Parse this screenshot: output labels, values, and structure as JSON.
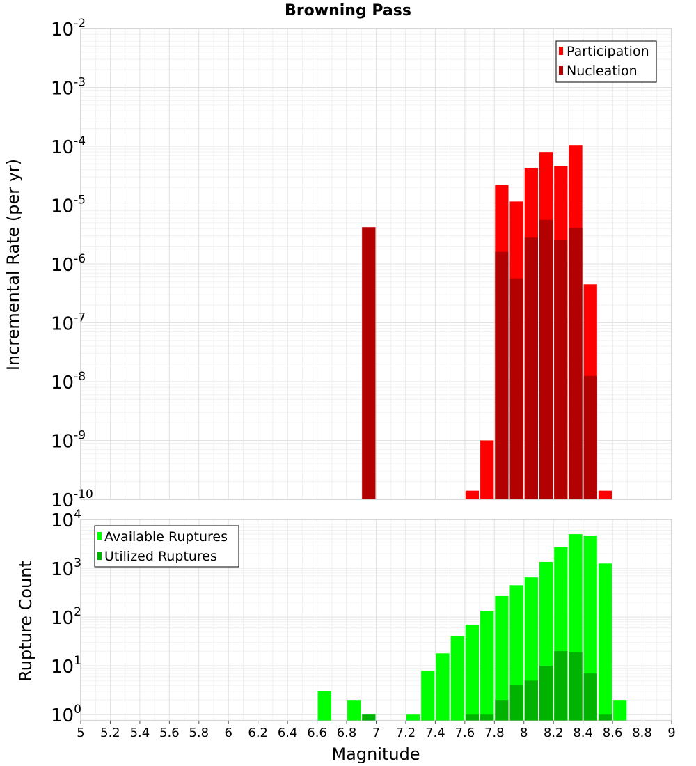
{
  "chart_data": [
    {
      "type": "bar",
      "title": "Browning Pass",
      "ylabel": "Incremental Rate (per yr)",
      "yscale": "log",
      "ylim": [
        1e-10,
        0.01
      ],
      "xlim": [
        5,
        9
      ],
      "bin_width": 0.1,
      "grid": true,
      "legend_position": "top-right",
      "legend": [
        "Participation",
        "Nucleation"
      ],
      "y_ticks": [
        {
          "base": "10",
          "exp": "-2",
          "value": 0.01
        },
        {
          "base": "10",
          "exp": "-3",
          "value": 0.001
        },
        {
          "base": "10",
          "exp": "-4",
          "value": 0.0001
        },
        {
          "base": "10",
          "exp": "-5",
          "value": 1e-05
        },
        {
          "base": "10",
          "exp": "-6",
          "value": 1e-06
        },
        {
          "base": "10",
          "exp": "-7",
          "value": 1e-07
        },
        {
          "base": "10",
          "exp": "-8",
          "value": 1e-08
        },
        {
          "base": "10",
          "exp": "-9",
          "value": 1e-09
        },
        {
          "base": "10",
          "exp": "-10",
          "value": 1e-10
        }
      ],
      "series": [
        {
          "name": "Participation",
          "color": "#ff0000",
          "x": [
            6.95,
            7.65,
            7.75,
            7.85,
            7.95,
            8.05,
            8.15,
            8.25,
            8.35,
            8.45,
            8.55
          ],
          "values": [
            4.2e-06,
            1.4e-10,
            1e-09,
            2.2e-05,
            1.15e-05,
            4.3e-05,
            8e-05,
            4.6e-05,
            0.000105,
            4.5e-07,
            1.4e-10
          ]
        },
        {
          "name": "Nucleation",
          "color": "#b30000",
          "x": [
            6.95,
            7.85,
            7.95,
            8.05,
            8.15,
            8.25,
            8.35,
            8.45
          ],
          "values": [
            4.2e-06,
            1.6e-06,
            5.7e-07,
            2.8e-06,
            5.6e-06,
            2.6e-06,
            4.1e-06,
            1.25e-08
          ]
        }
      ]
    },
    {
      "type": "bar",
      "xlabel": "Magnitude",
      "ylabel": "Rupture Count",
      "yscale": "log",
      "ylim": [
        0.75,
        10000
      ],
      "xlim": [
        5,
        9
      ],
      "bin_width": 0.1,
      "grid": true,
      "legend_position": "top-left",
      "legend": [
        "Available Ruptures",
        "Utilized Ruptures"
      ],
      "x_ticks": [
        "5",
        "5.2",
        "5.4",
        "5.6",
        "5.8",
        "6",
        "6.2",
        "6.4",
        "6.6",
        "6.8",
        "7",
        "7.2",
        "7.4",
        "7.6",
        "7.8",
        "8",
        "8.2",
        "8.4",
        "8.6",
        "8.8",
        "9"
      ],
      "y_ticks": [
        {
          "base": "10",
          "exp": "4",
          "value": 10000
        },
        {
          "base": "10",
          "exp": "3",
          "value": 1000
        },
        {
          "base": "10",
          "exp": "2",
          "value": 100
        },
        {
          "base": "10",
          "exp": "1",
          "value": 10
        },
        {
          "base": "10",
          "exp": "0",
          "value": 1
        }
      ],
      "series": [
        {
          "name": "Available Ruptures",
          "color": "#00ff00",
          "x": [
            6.65,
            6.85,
            6.95,
            7.25,
            7.35,
            7.45,
            7.55,
            7.65,
            7.75,
            7.85,
            7.95,
            8.05,
            8.15,
            8.25,
            8.35,
            8.45,
            8.55,
            8.65
          ],
          "values": [
            3,
            2,
            1,
            1,
            8,
            18,
            40,
            70,
            135,
            270,
            450,
            650,
            1350,
            2700,
            5000,
            4700,
            1250,
            2
          ]
        },
        {
          "name": "Utilized Ruptures",
          "color": "#00b300",
          "x": [
            6.95,
            7.65,
            7.75,
            7.85,
            7.95,
            8.05,
            8.15,
            8.25,
            8.35,
            8.45,
            8.55
          ],
          "values": [
            1,
            1,
            1,
            2,
            4,
            5,
            10,
            20,
            19,
            7,
            1
          ]
        }
      ]
    }
  ]
}
